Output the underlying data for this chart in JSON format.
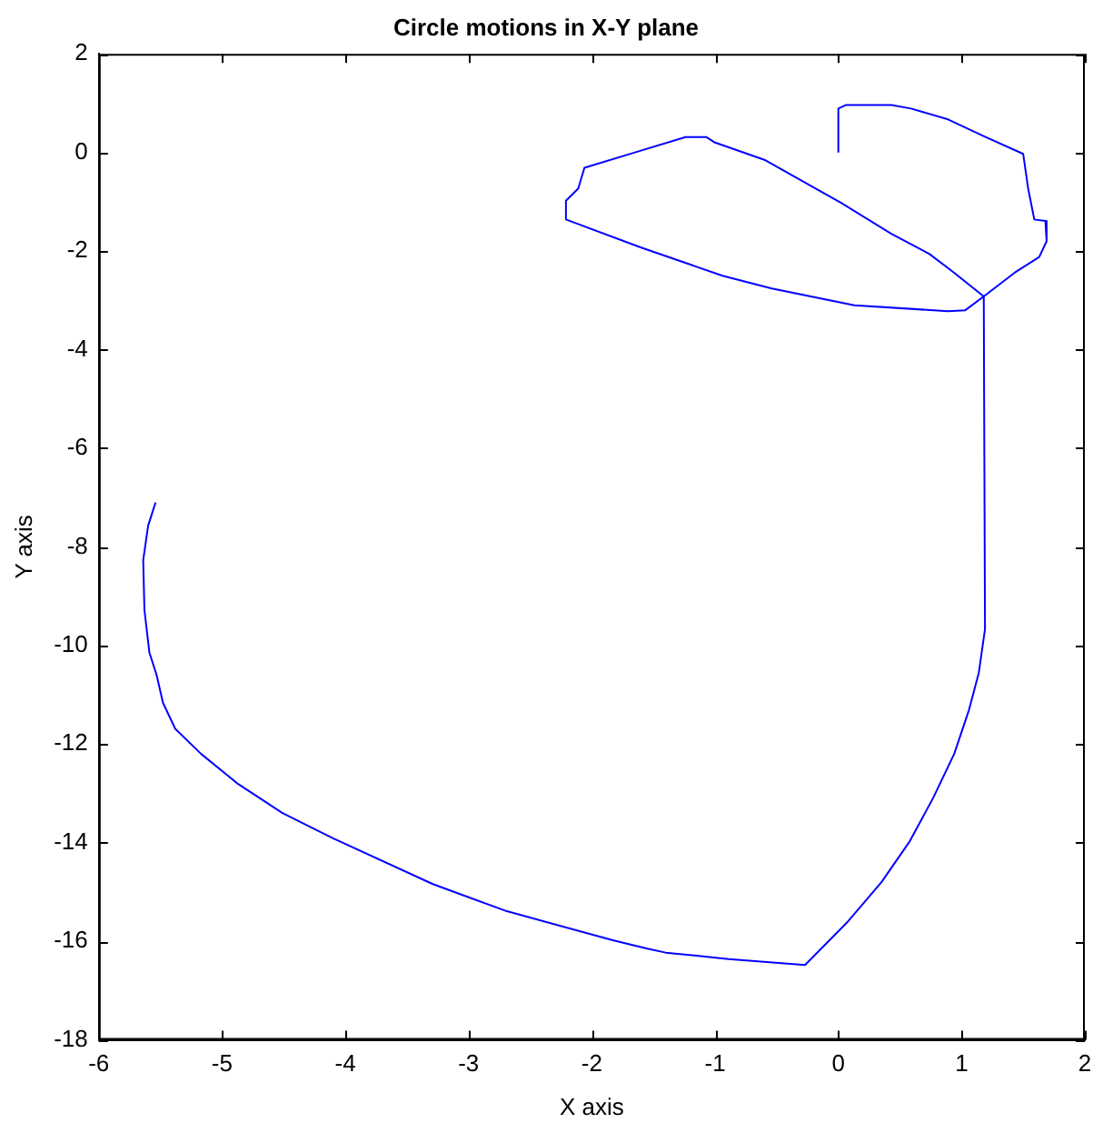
{
  "chart_data": {
    "type": "line",
    "title": "Circle motions in X-Y plane",
    "xlabel": "X axis",
    "ylabel": "Y axis",
    "xlim": [
      -6,
      2
    ],
    "ylim": [
      -18,
      2
    ],
    "xticks": [
      -6,
      -5,
      -4,
      -3,
      -2,
      -1,
      0,
      1,
      2
    ],
    "yticks": [
      -18,
      -16,
      -14,
      -12,
      -10,
      -8,
      -6,
      -4,
      -2,
      0,
      2
    ],
    "grid": false,
    "legend": false,
    "marker": "none",
    "line_style": "solid",
    "series": [
      {
        "color": "#0000ff",
        "x": [
          0,
          0,
          0.06,
          0.43,
          0.59,
          0.89,
          1.19,
          1.5,
          1.54,
          1.59,
          1.68,
          1.69,
          1.63,
          1.43,
          1.18,
          1.03,
          0.89,
          0.13,
          -0.54,
          -0.94,
          -1.6,
          -2.21,
          -2.21,
          -2.11,
          -2.06,
          -1.65,
          -1.24,
          -1.07,
          -1.0,
          -0.59,
          -0.23,
          0.02,
          0.43,
          0.74,
          0.94,
          1.18,
          1.19,
          1.14,
          1.06,
          0.94,
          0.77,
          0.58,
          0.35,
          0.07,
          -0.27,
          -0.89,
          -1.4,
          -1.55,
          -1.83,
          -2.69,
          -3.29,
          -4.1,
          -4.51,
          -4.87,
          -5.17,
          -5.38,
          -5.48,
          -5.53,
          -5.59,
          -5.63,
          -5.64,
          -5.6,
          -5.54
        ],
        "values": [
          0,
          0.89,
          0.96,
          0.96,
          0.89,
          0.67,
          0.32,
          -0.03,
          -0.73,
          -1.36,
          -1.39,
          -1.8,
          -2.12,
          -2.44,
          -2.92,
          -3.2,
          -3.22,
          -3.1,
          -2.76,
          -2.5,
          -1.93,
          -1.36,
          -0.98,
          -0.73,
          -0.31,
          0,
          0.31,
          0.31,
          0.2,
          -0.16,
          -0.67,
          -1.02,
          -1.65,
          -2.06,
          -2.44,
          -2.92,
          -9.67,
          -10.55,
          -11.31,
          -12.2,
          -13.09,
          -13.97,
          -14.8,
          -15.62,
          -16.48,
          -16.36,
          -16.23,
          -16.15,
          -15.98,
          -15.39,
          -14.84,
          -13.91,
          -13.4,
          -12.81,
          -12.2,
          -11.69,
          -11.16,
          -10.61,
          -10.14,
          -9.28,
          -8.27,
          -7.57,
          -7.1
        ]
      }
    ]
  }
}
